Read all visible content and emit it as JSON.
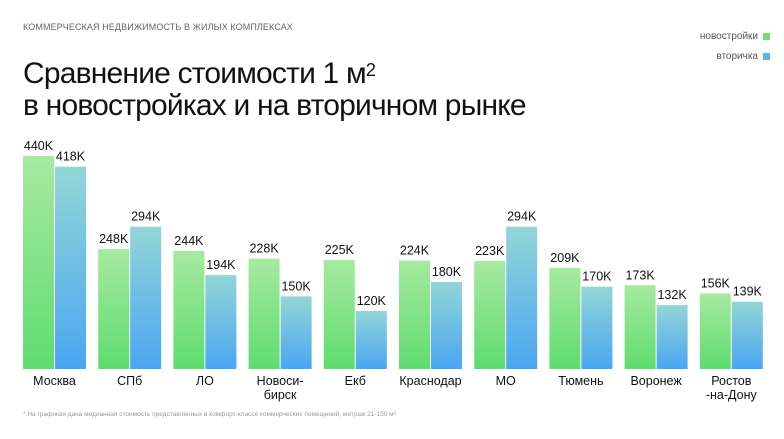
{
  "header": {
    "subtitle": "КОММЕРЧЕСКАЯ НЕДВИЖИМОСТЬ В ЖИЛЫХ КОМПЛЕКСАХ",
    "title_line1": "Сравнение стоимости 1 м",
    "title_sup": "2",
    "title_line2": "в новостройках и на вторичном рынке"
  },
  "footnote": "* На графиках дана медианная стоимость представленных в комфорт-классе коммерческих помещений, метраж 21-150 м²",
  "colors": {
    "new": "#5fdc6e",
    "new_top": "#a6eaa0",
    "resale": "#4aa6f2",
    "resale_top": "#92d6d6"
  },
  "chart_data": {
    "type": "bar",
    "title": "Сравнение стоимости 1 м² в новостройках и на вторичном рынке",
    "legend_position": "top-right",
    "categories": [
      [
        "Москва"
      ],
      [
        "СПб"
      ],
      [
        "ЛО"
      ],
      [
        "Новоси-",
        "бирск"
      ],
      [
        "Екб"
      ],
      [
        "Краснодар"
      ],
      [
        "МО"
      ],
      [
        "Тюмень"
      ],
      [
        "Воронеж"
      ],
      [
        "Ростов",
        "-на-Дону"
      ]
    ],
    "ylim": [
      0,
      440
    ],
    "series": [
      {
        "name": "новостройки",
        "values": [
          440,
          248,
          244,
          228,
          225,
          224,
          223,
          209,
          173,
          156
        ],
        "labels": [
          "440K",
          "248K",
          "244K",
          "228K",
          "225K",
          "224K",
          "223K",
          "209K",
          "173K",
          "156K"
        ]
      },
      {
        "name": "вторичка",
        "values": [
          418,
          294,
          194,
          150,
          120,
          180,
          294,
          170,
          132,
          139
        ],
        "labels": [
          "418K",
          "294K",
          "194K",
          "150K",
          "120K",
          "180K",
          "294K",
          "170K",
          "132K",
          "139K"
        ]
      }
    ]
  }
}
